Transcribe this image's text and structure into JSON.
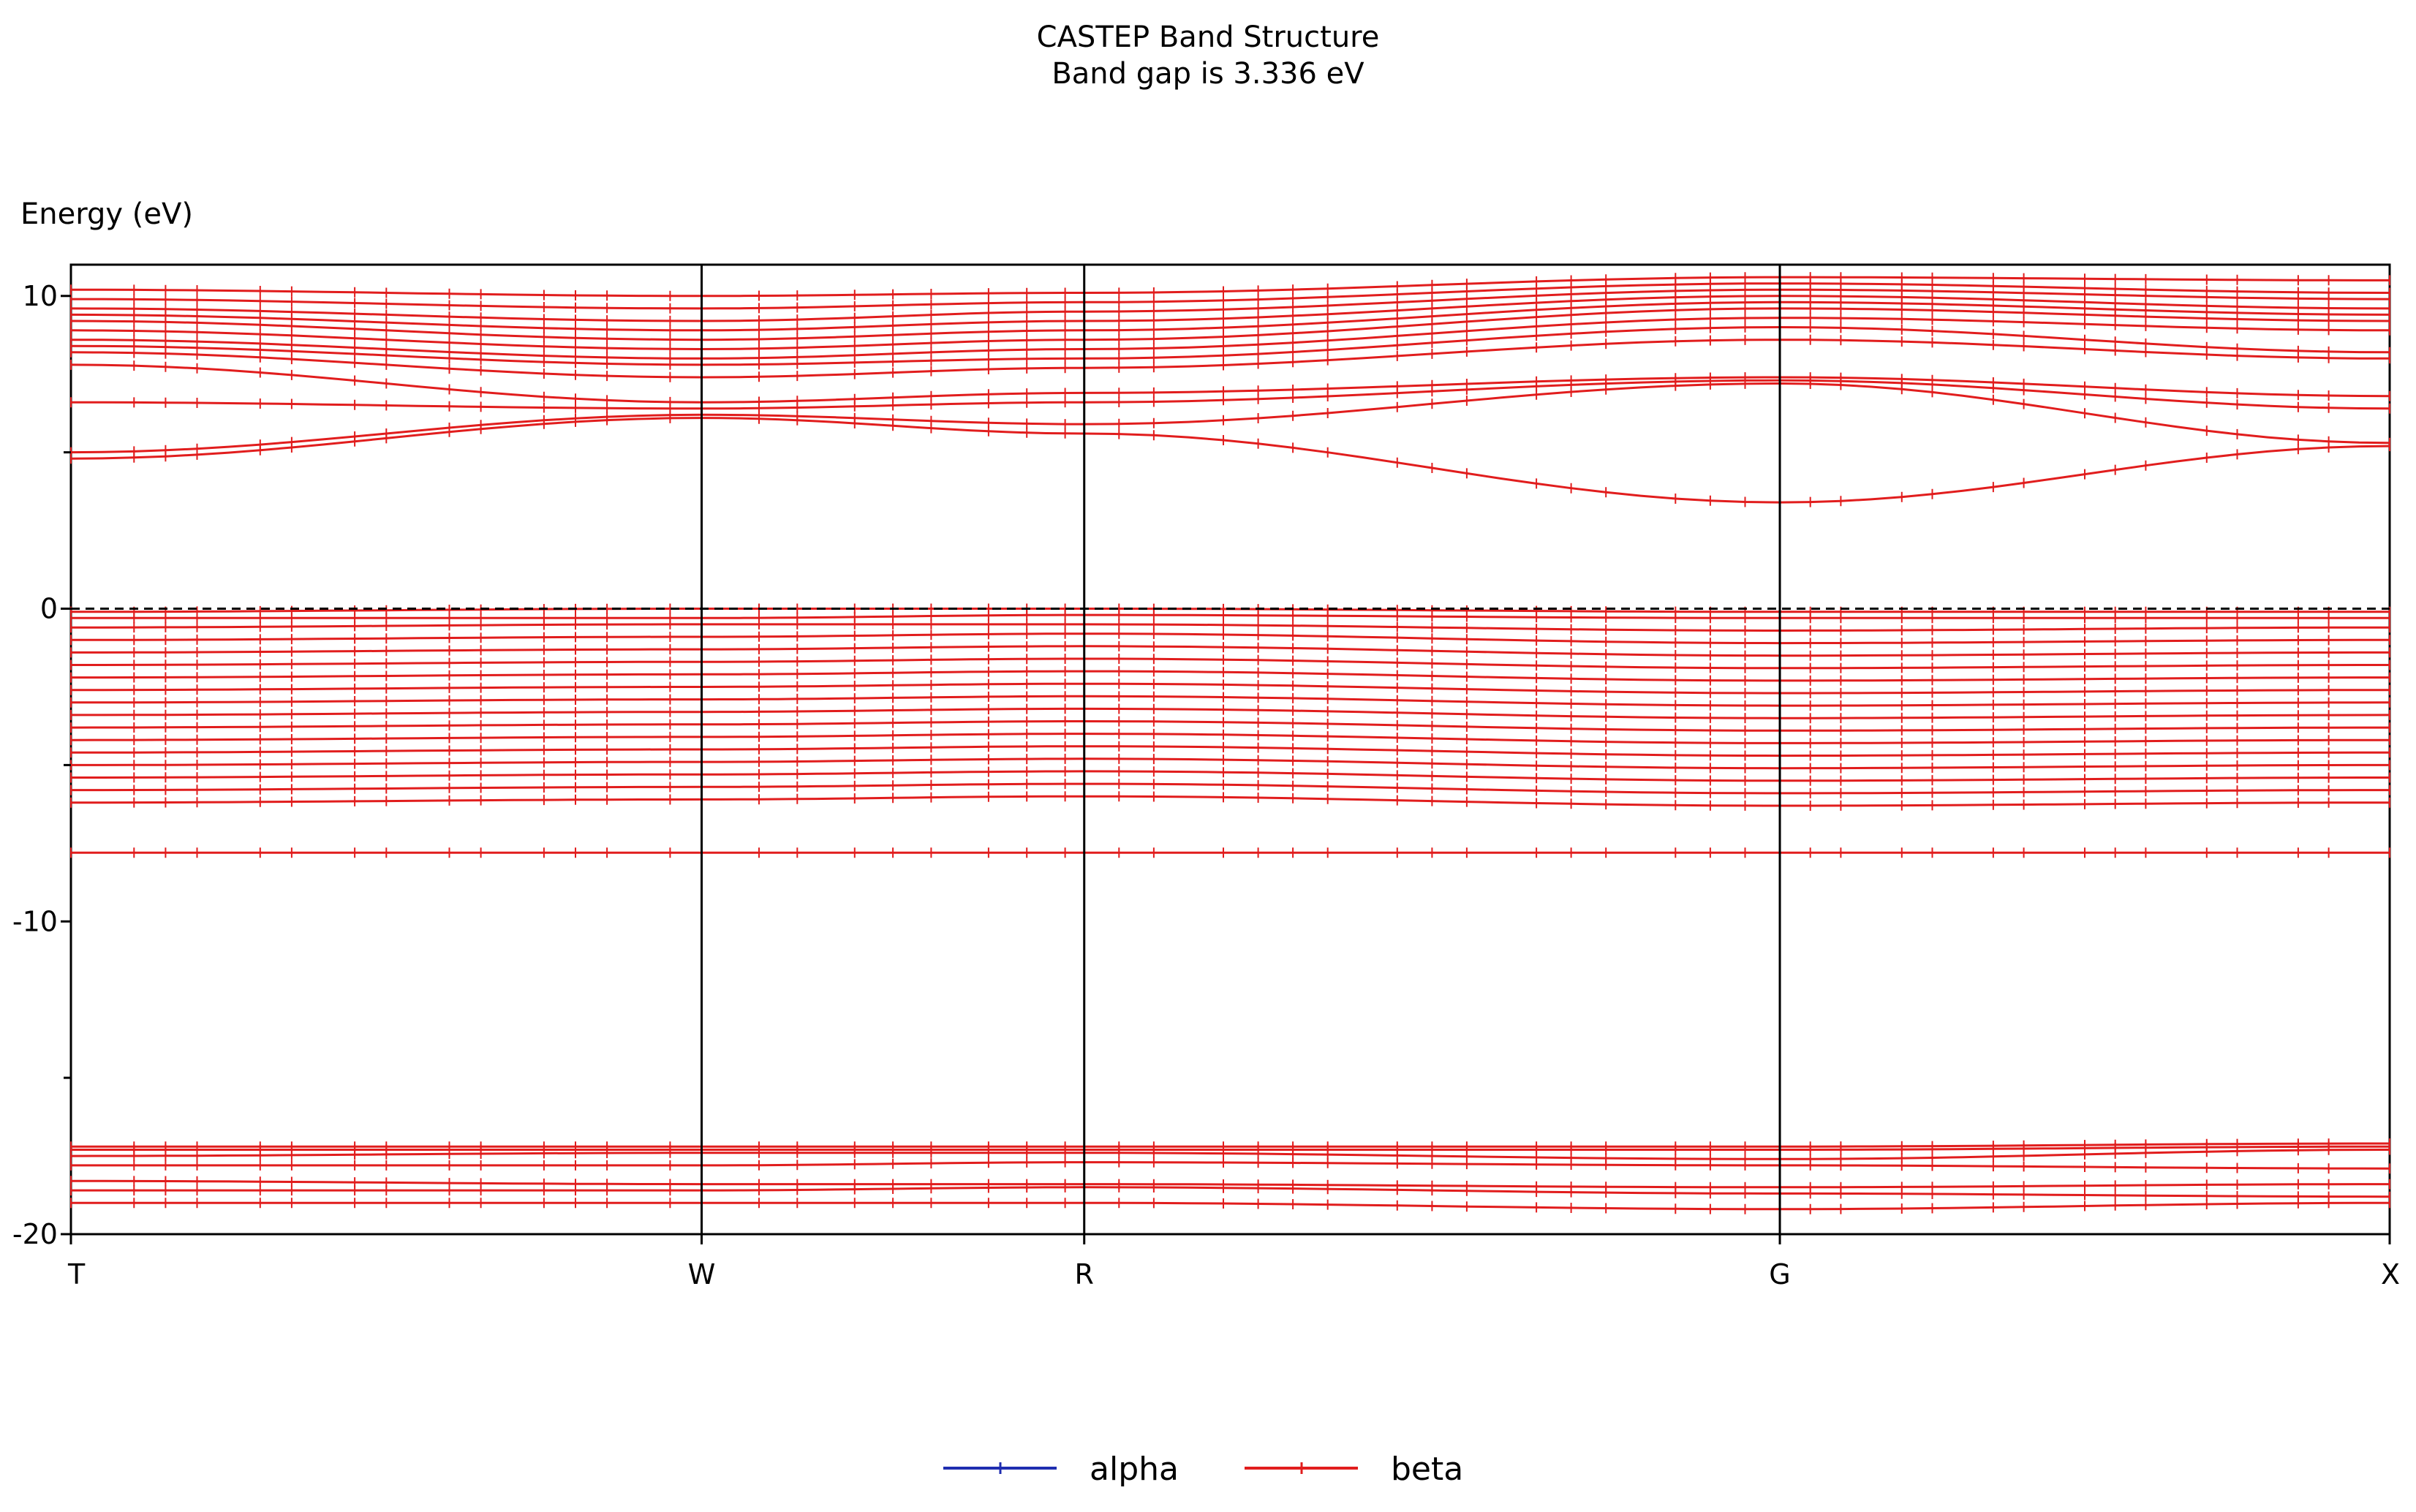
{
  "chart_data": {
    "type": "line",
    "title": "CASTEP Band Structure",
    "subtitle": "Band gap is 3.336 eV",
    "ylabel": "Energy (eV)",
    "xlabel": "",
    "ylim": [
      -20,
      11
    ],
    "y_ticks": [
      10,
      0,
      -10,
      -20
    ],
    "y_minor_ticks": [
      5,
      -5,
      -15
    ],
    "x": [
      0,
      0.272,
      0.437,
      0.737,
      1.0
    ],
    "x_labels": [
      "T",
      "W",
      "R",
      "G",
      "X"
    ],
    "fermi_level": 0,
    "grid": "vertical at high-symmetry points",
    "legend_position": "bottom-center",
    "colors": {
      "alpha": "#1f2db0",
      "beta": "#e11d1d"
    },
    "series": [
      {
        "name": "alpha",
        "bands": []
      },
      {
        "name": "beta",
        "bands": [
          [
            -19.0,
            -19.0,
            -19.0,
            -19.2,
            -19.0
          ],
          [
            -18.6,
            -18.6,
            -18.5,
            -18.7,
            -18.8
          ],
          [
            -18.3,
            -18.4,
            -18.4,
            -18.5,
            -18.4
          ],
          [
            -17.8,
            -17.8,
            -17.7,
            -17.8,
            -17.9
          ],
          [
            -17.5,
            -17.4,
            -17.4,
            -17.6,
            -17.3
          ],
          [
            -17.3,
            -17.3,
            -17.3,
            -17.3,
            -17.2
          ],
          [
            -17.2,
            -17.2,
            -17.2,
            -17.2,
            -17.1
          ],
          [
            -7.8,
            -7.8,
            -7.8,
            -7.8,
            -7.8
          ],
          [
            -6.2,
            -6.1,
            -6.0,
            -6.3,
            -6.2
          ],
          [
            -5.8,
            -5.7,
            -5.6,
            -5.9,
            -5.8
          ],
          [
            -5.4,
            -5.3,
            -5.2,
            -5.5,
            -5.4
          ],
          [
            -5.0,
            -4.9,
            -4.8,
            -5.1,
            -5.0
          ],
          [
            -4.6,
            -4.5,
            -4.4,
            -4.7,
            -4.6
          ],
          [
            -4.2,
            -4.1,
            -4.0,
            -4.3,
            -4.2
          ],
          [
            -3.8,
            -3.7,
            -3.6,
            -3.9,
            -3.8
          ],
          [
            -3.4,
            -3.3,
            -3.2,
            -3.5,
            -3.4
          ],
          [
            -3.0,
            -2.9,
            -2.8,
            -3.1,
            -3.0
          ],
          [
            -2.6,
            -2.5,
            -2.4,
            -2.7,
            -2.6
          ],
          [
            -2.2,
            -2.1,
            -2.0,
            -2.3,
            -2.2
          ],
          [
            -1.8,
            -1.7,
            -1.6,
            -1.9,
            -1.8
          ],
          [
            -1.4,
            -1.3,
            -1.2,
            -1.5,
            -1.4
          ],
          [
            -1.0,
            -0.9,
            -0.8,
            -1.1,
            -1.0
          ],
          [
            -0.6,
            -0.5,
            -0.5,
            -0.7,
            -0.6
          ],
          [
            -0.3,
            -0.3,
            -0.2,
            -0.3,
            -0.3
          ],
          [
            -0.1,
            0.0,
            0.0,
            -0.1,
            -0.1
          ],
          [
            4.8,
            6.1,
            5.6,
            3.4,
            5.2
          ],
          [
            5.0,
            6.2,
            5.9,
            7.2,
            5.3
          ],
          [
            6.6,
            6.4,
            6.6,
            7.3,
            6.4
          ],
          [
            7.8,
            6.6,
            6.9,
            7.4,
            6.8
          ],
          [
            8.2,
            7.4,
            7.7,
            8.6,
            8.0
          ],
          [
            8.4,
            7.8,
            8.0,
            9.0,
            8.2
          ],
          [
            8.6,
            8.0,
            8.3,
            9.3,
            8.9
          ],
          [
            8.9,
            8.3,
            8.6,
            9.6,
            9.2
          ],
          [
            9.2,
            8.6,
            8.9,
            9.8,
            9.4
          ],
          [
            9.4,
            8.9,
            9.2,
            10.0,
            9.6
          ],
          [
            9.6,
            9.2,
            9.5,
            10.2,
            9.9
          ],
          [
            9.9,
            9.6,
            9.8,
            10.4,
            10.1
          ],
          [
            10.2,
            10.0,
            10.1,
            10.6,
            10.5
          ]
        ]
      }
    ]
  }
}
